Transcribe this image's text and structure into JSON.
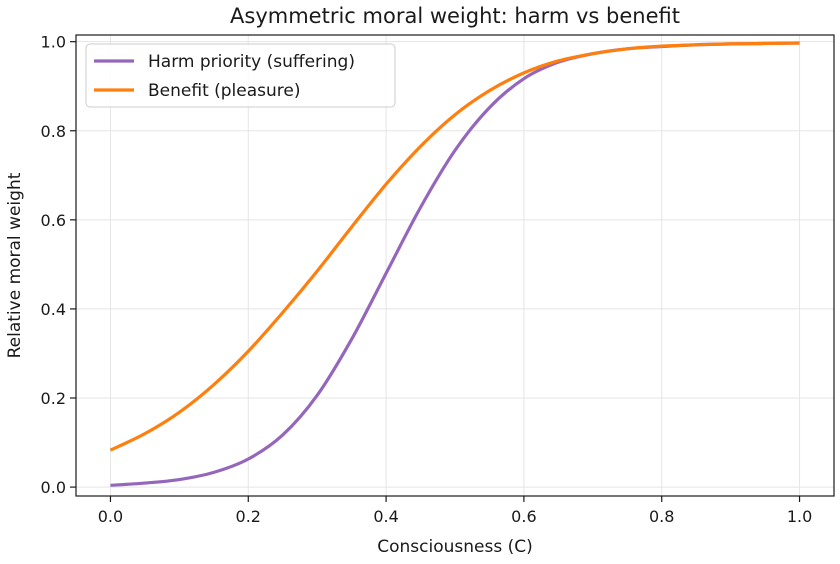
{
  "chart_data": {
    "type": "line",
    "title": "Asymmetric moral weight: harm vs benefit",
    "xlabel": "Consciousness (C)",
    "ylabel": "Relative moral weight",
    "xlim": [
      -0.05,
      1.05
    ],
    "ylim": [
      -0.02,
      1.015
    ],
    "xticks": [
      0.0,
      0.2,
      0.4,
      0.6,
      0.8,
      1.0
    ],
    "xtick_labels": [
      "0.0",
      "0.2",
      "0.4",
      "0.6",
      "0.8",
      "1.0"
    ],
    "yticks": [
      0.0,
      0.2,
      0.4,
      0.6,
      0.8,
      1.0
    ],
    "ytick_labels": [
      "0.0",
      "0.2",
      "0.4",
      "0.6",
      "0.8",
      "1.0"
    ],
    "grid": true,
    "legend_position": "top-left",
    "x": [
      0.0,
      0.05,
      0.1,
      0.15,
      0.2,
      0.25,
      0.3,
      0.35,
      0.4,
      0.45,
      0.5,
      0.55,
      0.6,
      0.65,
      0.7,
      0.75,
      0.8,
      0.85,
      0.9,
      0.95,
      1.0
    ],
    "series": [
      {
        "name": "Harm priority (suffering)",
        "color": "#9467bd",
        "values": [
          0.004,
          0.009,
          0.017,
          0.033,
          0.063,
          0.117,
          0.206,
          0.332,
          0.48,
          0.628,
          0.756,
          0.852,
          0.917,
          0.954,
          0.973,
          0.984,
          0.989,
          0.993,
          0.995,
          0.996,
          0.997
        ]
      },
      {
        "name": "Benefit (pleasure)",
        "color": "#ff7f0e",
        "values": [
          0.083,
          0.12,
          0.168,
          0.23,
          0.305,
          0.392,
          0.485,
          0.584,
          0.68,
          0.765,
          0.836,
          0.89,
          0.93,
          0.957,
          0.973,
          0.984,
          0.99,
          0.993,
          0.995,
          0.996,
          0.997
        ]
      }
    ]
  }
}
